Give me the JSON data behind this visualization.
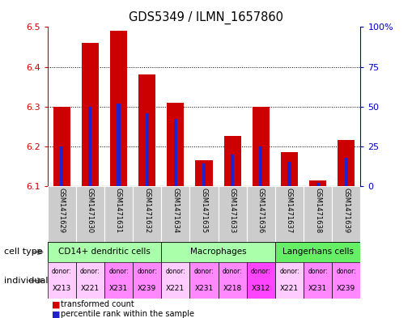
{
  "title": "GDS5349 / ILMN_1657860",
  "samples": [
    "GSM1471629",
    "GSM1471630",
    "GSM1471631",
    "GSM1471632",
    "GSM1471634",
    "GSM1471635",
    "GSM1471633",
    "GSM1471636",
    "GSM1471637",
    "GSM1471638",
    "GSM1471639"
  ],
  "transformed_count": [
    6.3,
    6.46,
    6.49,
    6.38,
    6.31,
    6.165,
    6.225,
    6.3,
    6.185,
    6.115,
    6.215
  ],
  "percentile_rank": [
    25,
    50,
    52,
    46,
    42,
    14,
    20,
    25,
    15,
    2,
    18
  ],
  "ylim_left": [
    6.1,
    6.5
  ],
  "ylim_right": [
    0,
    100
  ],
  "yticks_left": [
    6.1,
    6.2,
    6.3,
    6.4,
    6.5
  ],
  "yticks_right": [
    0,
    25,
    50,
    75,
    100
  ],
  "ytick_labels_right": [
    "0",
    "25",
    "50",
    "75",
    "100%"
  ],
  "bar_color_red": "#cc0000",
  "bar_color_blue": "#2222cc",
  "bar_width": 0.6,
  "blue_bar_width": 0.12,
  "tick_color_left": "#cc0000",
  "tick_color_right": "#0000bb",
  "grid_yticks": [
    6.2,
    6.3,
    6.4
  ],
  "cell_groups": [
    {
      "label": "CD14+ dendritic cells",
      "cols": [
        0,
        1,
        2,
        3
      ],
      "color": "#aaffaa"
    },
    {
      "label": "Macrophages",
      "cols": [
        4,
        5,
        6,
        7
      ],
      "color": "#aaffaa"
    },
    {
      "label": "Langerhans cells",
      "cols": [
        8,
        9,
        10
      ],
      "color": "#55ee55"
    }
  ],
  "individuals": [
    {
      "donor": "X213",
      "bg": "#ffccff"
    },
    {
      "donor": "X221",
      "bg": "#ffccff"
    },
    {
      "donor": "X231",
      "bg": "#ff88ff"
    },
    {
      "donor": "X239",
      "bg": "#ff88ff"
    },
    {
      "donor": "X221",
      "bg": "#ffccff"
    },
    {
      "donor": "X231",
      "bg": "#ffccff"
    },
    {
      "donor": "X218",
      "bg": "#ff88ff"
    },
    {
      "donor": "X312",
      "bg": "#ff44ff"
    },
    {
      "donor": "X221",
      "bg": "#ffccff"
    },
    {
      "donor": "X231",
      "bg": "#ffccff"
    },
    {
      "donor": "X239",
      "bg": "#ff88ff"
    }
  ],
  "sample_bg": "#cccccc"
}
